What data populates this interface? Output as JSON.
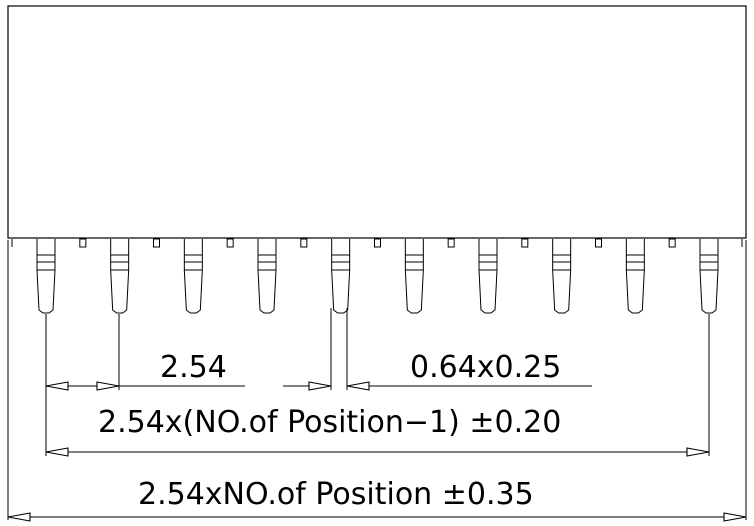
{
  "drawing": {
    "pin_count": 10,
    "pitch_label": "2.54",
    "pin_size_label": "0.64x0.25",
    "span_label": "2.54x(NO.of Position−1) ±0.20",
    "overall_label": "2.54xNO.of Position ±0.35"
  }
}
